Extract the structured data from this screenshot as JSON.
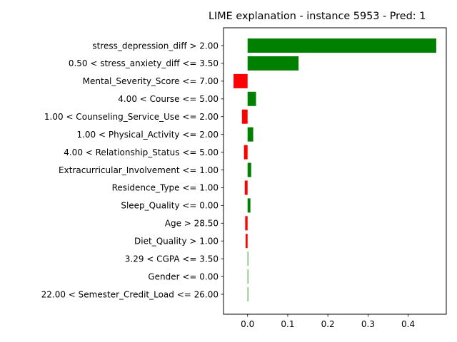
{
  "chart_data": {
    "type": "bar",
    "orientation": "horizontal",
    "title": "LIME explanation - instance 5953 - Pred: 1",
    "xlabel": "",
    "ylabel": "",
    "xlim": [
      -0.06,
      0.495
    ],
    "xticks": [
      0.0,
      0.1,
      0.2,
      0.3,
      0.4
    ],
    "xtick_labels": [
      "0.0",
      "0.1",
      "0.2",
      "0.3",
      "0.4"
    ],
    "grid": false,
    "positive_color": "#008000",
    "negative_color": "#ff0000",
    "categories": [
      "stress_depression_diff > 2.00",
      "0.50 < stress_anxiety_diff <= 3.50",
      "Mental_Severity_Score <= 7.00",
      "4.00 < Course <= 5.00",
      "1.00 < Counseling_Service_Use <= 2.00",
      "1.00 < Physical_Activity <= 2.00",
      "4.00 < Relationship_Status <= 5.00",
      "Extracurricular_Involvement <= 1.00",
      "Residence_Type <= 1.00",
      "Sleep_Quality <= 0.00",
      "Age > 28.50",
      "Diet_Quality > 1.00",
      "3.29 < CGPA <= 3.50",
      "Gender <= 0.00",
      "22.00 < Semester_Credit_Load <= 26.00"
    ],
    "values": [
      0.47,
      0.127,
      -0.035,
      0.021,
      -0.014,
      0.014,
      -0.009,
      0.009,
      -0.007,
      0.007,
      -0.006,
      -0.005,
      0.001,
      0.001,
      0.001
    ]
  }
}
